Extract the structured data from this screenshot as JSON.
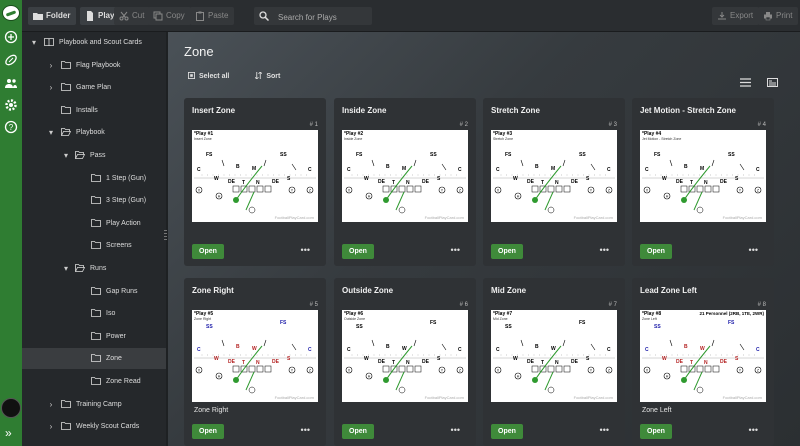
{
  "toolbar": {
    "folder": "Folder",
    "play": "Play",
    "cut": "Cut",
    "copy": "Copy",
    "paste": "Paste",
    "search_placeholder": "Search for Plays",
    "export": "Export",
    "print": "Print"
  },
  "tree": [
    {
      "label": "Playbook and Scout Cards",
      "chev": "▾",
      "icon": "book",
      "level": 0
    },
    {
      "label": "Flag Playbook",
      "chev": "›",
      "icon": "folder",
      "level": 1
    },
    {
      "label": "Game Plan",
      "chev": "›",
      "icon": "folder",
      "level": 1
    },
    {
      "label": "Installs",
      "chev": "",
      "icon": "folder",
      "level": 1
    },
    {
      "label": "Playbook",
      "chev": "▾",
      "icon": "folder-open",
      "level": 1
    },
    {
      "label": "Pass",
      "chev": "▾",
      "icon": "folder-open",
      "level": 2
    },
    {
      "label": "1 Step (Gun)",
      "chev": "",
      "icon": "folder",
      "level": 3
    },
    {
      "label": "3 Step (Gun)",
      "chev": "",
      "icon": "folder",
      "level": 3
    },
    {
      "label": "Play Action",
      "chev": "",
      "icon": "folder",
      "level": 3
    },
    {
      "label": "Screens",
      "chev": "",
      "icon": "folder",
      "level": 3
    },
    {
      "label": "Runs",
      "chev": "▾",
      "icon": "folder-open",
      "level": 2
    },
    {
      "label": "Gap Runs",
      "chev": "",
      "icon": "folder",
      "level": 3
    },
    {
      "label": "Iso",
      "chev": "",
      "icon": "folder",
      "level": 3
    },
    {
      "label": "Power",
      "chev": "",
      "icon": "folder",
      "level": 3
    },
    {
      "label": "Zone",
      "chev": "",
      "icon": "folder",
      "level": 3,
      "selected": true
    },
    {
      "label": "Zone Read",
      "chev": "",
      "icon": "folder",
      "level": 3
    },
    {
      "label": "Training Camp",
      "chev": "›",
      "icon": "folder",
      "level": 1
    },
    {
      "label": "Weekly Scout Cards",
      "chev": "›",
      "icon": "folder",
      "level": 1
    }
  ],
  "main": {
    "title": "Zone",
    "select_all": "Select all",
    "sort": "Sort"
  },
  "cards": [
    {
      "title": "Insert Zone",
      "num": "# 1",
      "subtitle": "",
      "open": "Open",
      "tag": "*Play #1",
      "tagsub": "Insert Zone",
      "watermark": "FootballPlayCard.com"
    },
    {
      "title": "Inside Zone",
      "num": "# 2",
      "subtitle": "",
      "open": "Open",
      "tag": "*Play #2",
      "tagsub": "Inside Zone",
      "watermark": "FootballPlayCard.com"
    },
    {
      "title": "Stretch Zone",
      "num": "# 3",
      "subtitle": "",
      "open": "Open",
      "tag": "*Play #3",
      "tagsub": "Stretch Zone",
      "watermark": "FootballPlayCard.com"
    },
    {
      "title": "Jet Motion - Stretch Zone",
      "num": "# 4",
      "subtitle": "",
      "open": "Open",
      "tag": "*Play #4",
      "tagsub": "Jet Motion - Stretch Zone",
      "watermark": "FootballPlayCard.com"
    },
    {
      "title": "Zone Right",
      "num": "# 5",
      "subtitle": "Zone Right",
      "open": "Open",
      "tag": "*Play #5",
      "tagsub": "Zone Right",
      "watermark": "FootballPlayCard.com"
    },
    {
      "title": "Outside Zone",
      "num": "# 6",
      "subtitle": "",
      "open": "Open",
      "tag": "*Play #6",
      "tagsub": "Outside Zone",
      "watermark": "FootballPlayCard.com"
    },
    {
      "title": "Mid Zone",
      "num": "# 7",
      "subtitle": "",
      "open": "Open",
      "tag": "*Play #7",
      "tagsub": "Mid Zone",
      "watermark": "FootballPlayCard.com"
    },
    {
      "title": "Lead Zone Left",
      "num": "# 8",
      "subtitle": "Zone Left",
      "open": "Open",
      "tag": "*Play #8",
      "tagsub": "Zone Left",
      "watermark": "FootballPlayCard.com",
      "personnel": "21 Personnel (2RB, 1TE, 2WR)"
    }
  ],
  "colors": {
    "accent": "#2f7d32",
    "open_button": "#3f8a3a"
  }
}
